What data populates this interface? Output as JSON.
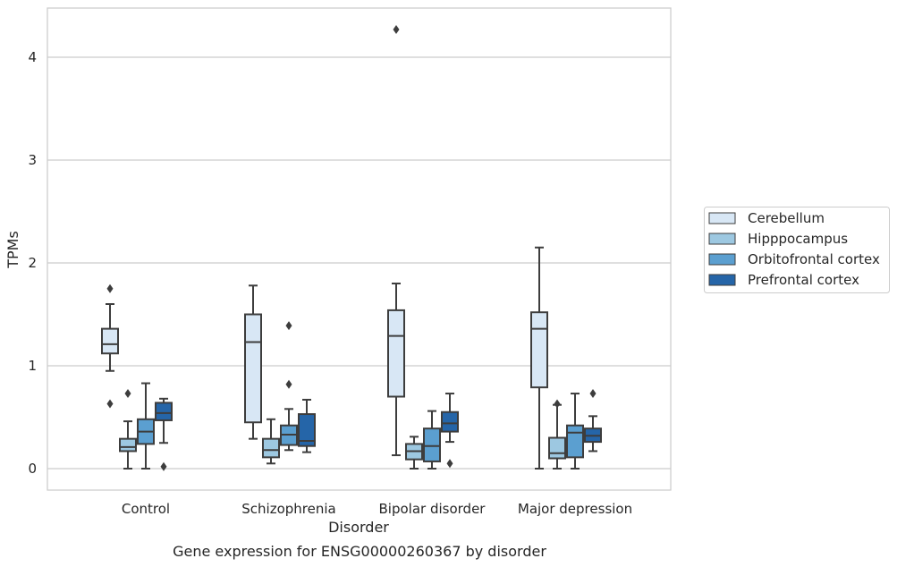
{
  "chart_data": {
    "type": "boxplot",
    "title": "",
    "caption": "Gene expression for ENSG00000260367 by disorder",
    "xlabel": "Disorder",
    "ylabel": "TPMs",
    "ylim": [
      -0.2,
      4.5
    ],
    "yticks": [
      0,
      1,
      2,
      3,
      4
    ],
    "grid": "horizontal",
    "legend_placement": "right",
    "categories": [
      "Control",
      "Schizophrenia",
      "Bipolar disorder",
      "Major depression"
    ],
    "series": [
      {
        "name": "Cerebellum",
        "color": "#d8e7f5",
        "boxes": [
          {
            "whisker_low": 0.95,
            "q1": 1.12,
            "median": 1.21,
            "q3": 1.36,
            "whisker_high": 1.6,
            "outliers": [
              1.75,
              0.63
            ]
          },
          {
            "whisker_low": 0.29,
            "q1": 0.45,
            "median": 1.23,
            "q3": 1.5,
            "whisker_high": 1.78,
            "outliers": []
          },
          {
            "whisker_low": 0.13,
            "q1": 0.7,
            "median": 1.29,
            "q3": 1.54,
            "whisker_high": 1.8,
            "outliers": [
              4.27
            ]
          },
          {
            "whisker_low": 0.0,
            "q1": 0.79,
            "median": 1.36,
            "q3": 1.52,
            "whisker_high": 2.15,
            "outliers": []
          }
        ]
      },
      {
        "name": "Hipppocampus",
        "color": "#9dc8e1",
        "boxes": [
          {
            "whisker_low": 0.0,
            "q1": 0.17,
            "median": 0.21,
            "q3": 0.29,
            "whisker_high": 0.46,
            "outliers": [
              0.73
            ]
          },
          {
            "whisker_low": 0.05,
            "q1": 0.11,
            "median": 0.18,
            "q3": 0.29,
            "whisker_high": 0.48,
            "outliers": []
          },
          {
            "whisker_low": 0.0,
            "q1": 0.09,
            "median": 0.17,
            "q3": 0.24,
            "whisker_high": 0.31,
            "outliers": []
          },
          {
            "whisker_low": 0.0,
            "q1": 0.1,
            "median": 0.15,
            "q3": 0.3,
            "whisker_high": 0.62,
            "outliers": [
              0.63
            ]
          }
        ]
      },
      {
        "name": "Orbitofrontal cortex",
        "color": "#5b9fd0",
        "boxes": [
          {
            "whisker_low": 0.0,
            "q1": 0.24,
            "median": 0.36,
            "q3": 0.48,
            "whisker_high": 0.83,
            "outliers": []
          },
          {
            "whisker_low": 0.18,
            "q1": 0.23,
            "median": 0.33,
            "q3": 0.42,
            "whisker_high": 0.58,
            "outliers": [
              1.39,
              0.82
            ]
          },
          {
            "whisker_low": 0.0,
            "q1": 0.07,
            "median": 0.22,
            "q3": 0.39,
            "whisker_high": 0.56,
            "outliers": []
          },
          {
            "whisker_low": 0.0,
            "q1": 0.11,
            "median": 0.35,
            "q3": 0.42,
            "whisker_high": 0.73,
            "outliers": []
          }
        ]
      },
      {
        "name": "Prefrontal cortex",
        "color": "#2565a8",
        "boxes": [
          {
            "whisker_low": 0.25,
            "q1": 0.47,
            "median": 0.54,
            "q3": 0.64,
            "whisker_high": 0.68,
            "outliers": [
              0.02
            ]
          },
          {
            "whisker_low": 0.16,
            "q1": 0.22,
            "median": 0.27,
            "q3": 0.53,
            "whisker_high": 0.67,
            "outliers": []
          },
          {
            "whisker_low": 0.26,
            "q1": 0.36,
            "median": 0.44,
            "q3": 0.55,
            "whisker_high": 0.73,
            "outliers": [
              0.05
            ]
          },
          {
            "whisker_low": 0.17,
            "q1": 0.26,
            "median": 0.32,
            "q3": 0.39,
            "whisker_high": 0.51,
            "outliers": [
              0.73
            ]
          }
        ]
      }
    ]
  }
}
